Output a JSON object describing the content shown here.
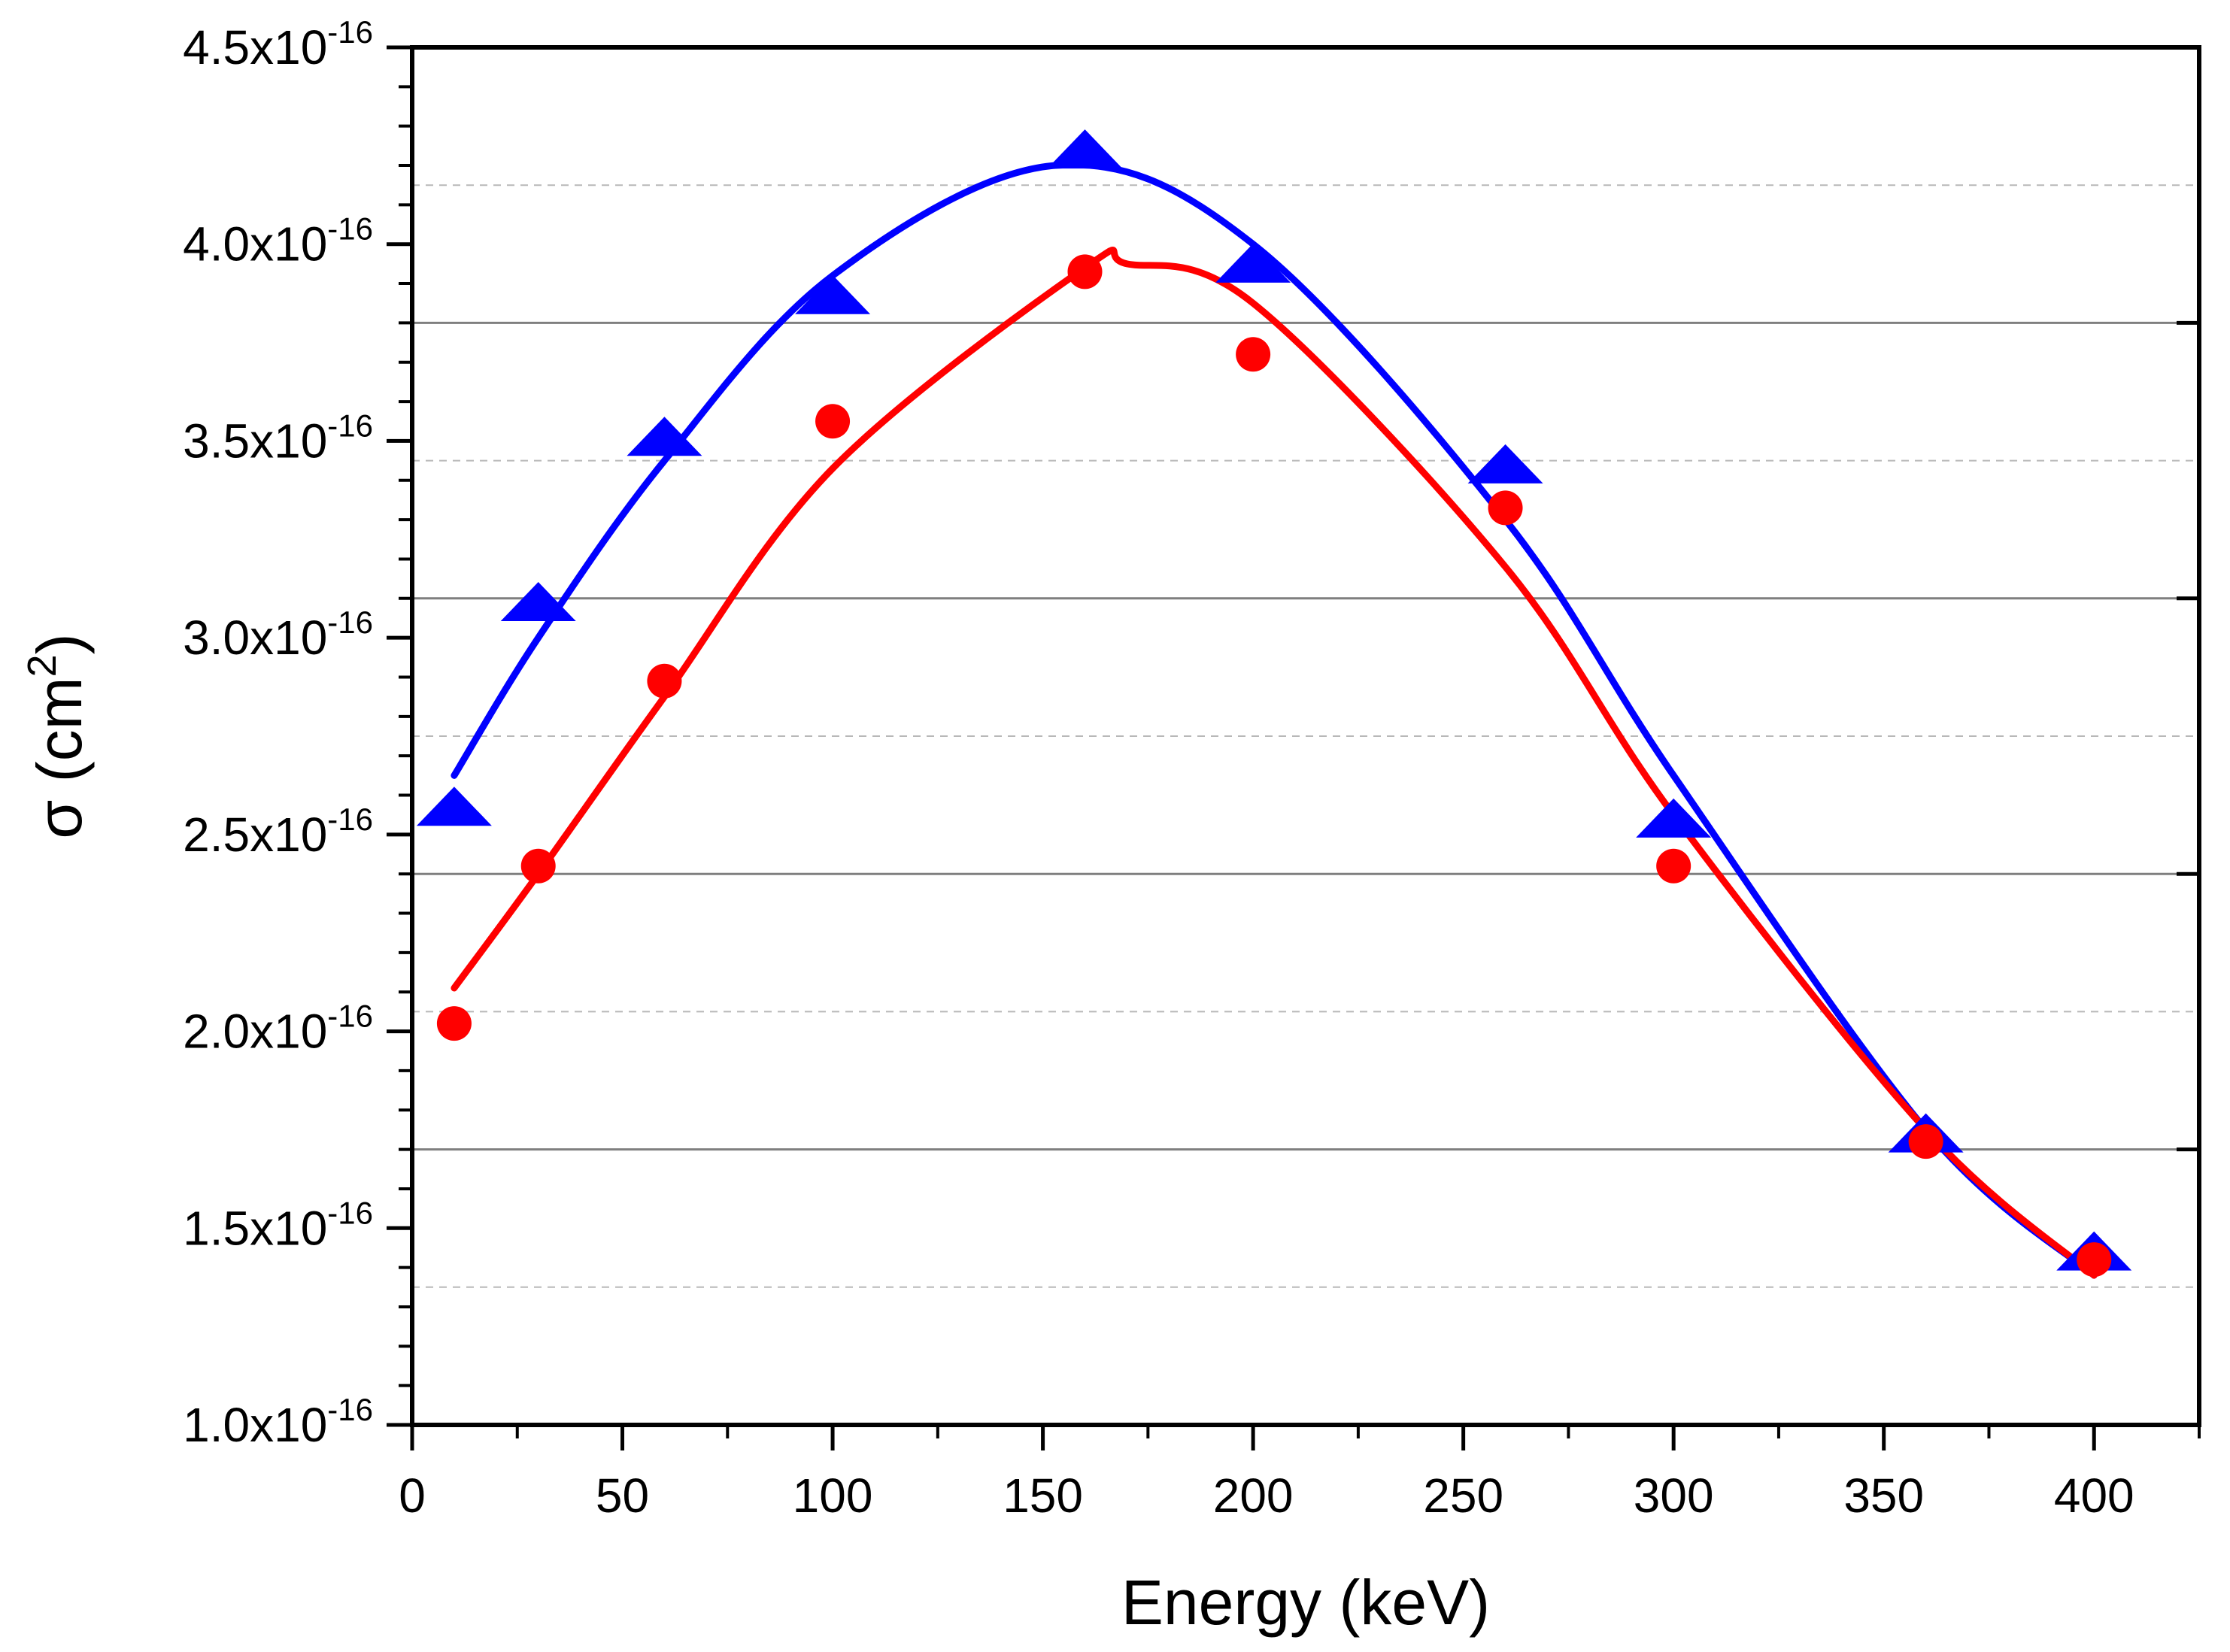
{
  "chart_data": {
    "type": "scatter",
    "title": "",
    "xlabel": "Energy (keV)",
    "ylabel": {
      "prefix": "σ (cm",
      "sup": "2",
      "suffix": ")"
    },
    "xlim": [
      0,
      425
    ],
    "ylim": [
      1e-16,
      4.5e-16
    ],
    "x_ticks": [
      0,
      50,
      100,
      150,
      200,
      250,
      300,
      350,
      400
    ],
    "x_tick_labels": [
      "0",
      "50",
      "100",
      "150",
      "200",
      "250",
      "300",
      "350",
      "400"
    ],
    "y_ticks": [
      1e-16,
      1.5e-16,
      2e-16,
      2.5e-16,
      3e-16,
      3.5e-16,
      4e-16,
      4.5e-16
    ],
    "y_tick_labels": [
      {
        "mantissa": "1.0x10",
        "exp": "-16"
      },
      {
        "mantissa": "1.5x10",
        "exp": "-16"
      },
      {
        "mantissa": "2.0x10",
        "exp": "-16"
      },
      {
        "mantissa": "2.5x10",
        "exp": "-16"
      },
      {
        "mantissa": "3.0x10",
        "exp": "-16"
      },
      {
        "mantissa": "3.5x10",
        "exp": "-16"
      },
      {
        "mantissa": "4.0x10",
        "exp": "-16"
      },
      {
        "mantissa": "4.5x10",
        "exp": "-16"
      }
    ],
    "grid": {
      "solid_y": [
        1.7e-16,
        2.4e-16,
        3.1e-16,
        3.8e-16
      ],
      "dashed_y": [
        1.35e-16,
        2.05e-16,
        2.75e-16,
        3.45e-16,
        4.15e-16
      ]
    },
    "series": [
      {
        "marker": "triangle",
        "color": "#0000ff",
        "x": [
          10,
          30,
          60,
          100,
          160,
          200,
          260,
          300,
          360,
          400
        ],
        "y": [
          2.56e-16,
          3.08e-16,
          3.5e-16,
          3.86e-16,
          4.23e-16,
          3.94e-16,
          3.43e-16,
          2.53e-16,
          1.73e-16,
          1.43e-16
        ]
      },
      {
        "marker": "circle",
        "color": "#ff0000",
        "x": [
          10,
          30,
          60,
          100,
          160,
          200,
          260,
          300,
          360,
          400
        ],
        "y": [
          2.02e-16,
          2.42e-16,
          2.89e-16,
          3.55e-16,
          3.93e-16,
          3.72e-16,
          3.33e-16,
          2.42e-16,
          1.72e-16,
          1.42e-16
        ]
      }
    ],
    "fits": [
      {
        "color": "#0000ff",
        "x": [
          10,
          30,
          60,
          100,
          153,
          200,
          260,
          300,
          360,
          400
        ],
        "y": [
          2.65e-16,
          3e-16,
          3.45e-16,
          3.92e-16,
          4.2e-16,
          4e-16,
          3.3e-16,
          2.65e-16,
          1.75e-16,
          1.38e-16
        ]
      },
      {
        "color": "#ff0000",
        "x": [
          10,
          30,
          60,
          100,
          160,
          170,
          200,
          260,
          300,
          360,
          400
        ],
        "y": [
          2.11e-16,
          2.4e-16,
          2.85e-16,
          3.43e-16,
          3.94e-16,
          3.95e-16,
          3.85e-16,
          3.18e-16,
          2.55e-16,
          1.75e-16,
          1.38e-16
        ]
      }
    ]
  }
}
